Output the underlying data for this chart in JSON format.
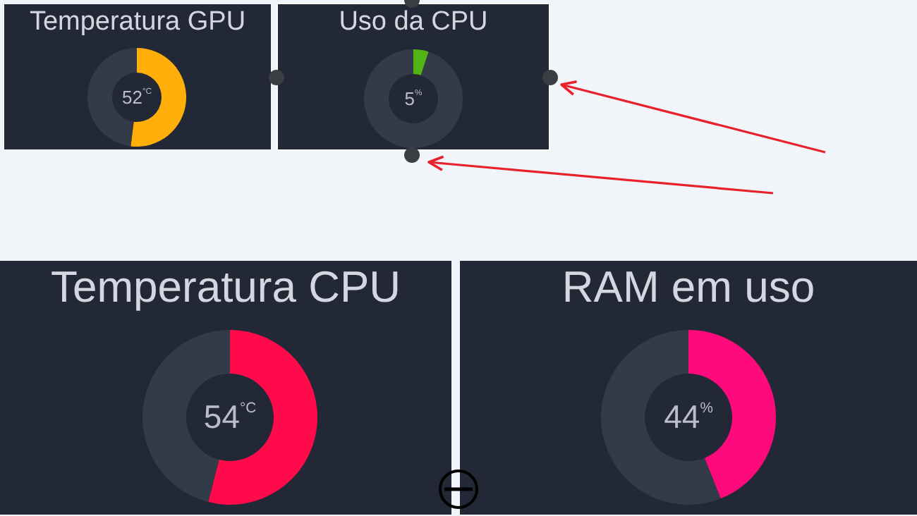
{
  "chart_data": [
    {
      "type": "donut",
      "title": "Temperatura GPU",
      "categories": [
        null,
        null
      ],
      "values": [
        52,
        48
      ],
      "colors": [
        "#ffae0a",
        "#343b48"
      ],
      "annotations": [
        "52$^{°C}$"
      ]
    },
    {
      "type": "donut",
      "title": "Uso da CPU",
      "categories": [
        null,
        null
      ],
      "values": [
        5,
        95
      ],
      "colors": [
        "#52b315",
        "#343b48"
      ],
      "annotations": [
        "5$^{%}$"
      ]
    },
    {
      "type": "donut",
      "title": "Temperatura CPU",
      "categories": [
        null,
        null
      ],
      "values": [
        54,
        46
      ],
      "colors": [
        "#ff0a4a",
        "#343b48"
      ],
      "annotations": [
        "54$^{°C}$"
      ]
    },
    {
      "type": "donut",
      "title": "RAM em uso",
      "categories": [
        null,
        null
      ],
      "values": [
        44,
        56
      ],
      "colors": [
        "#ff0a7c",
        "#343b48"
      ],
      "annotations": [
        "44$^{%}$"
      ]
    }
  ]
}
